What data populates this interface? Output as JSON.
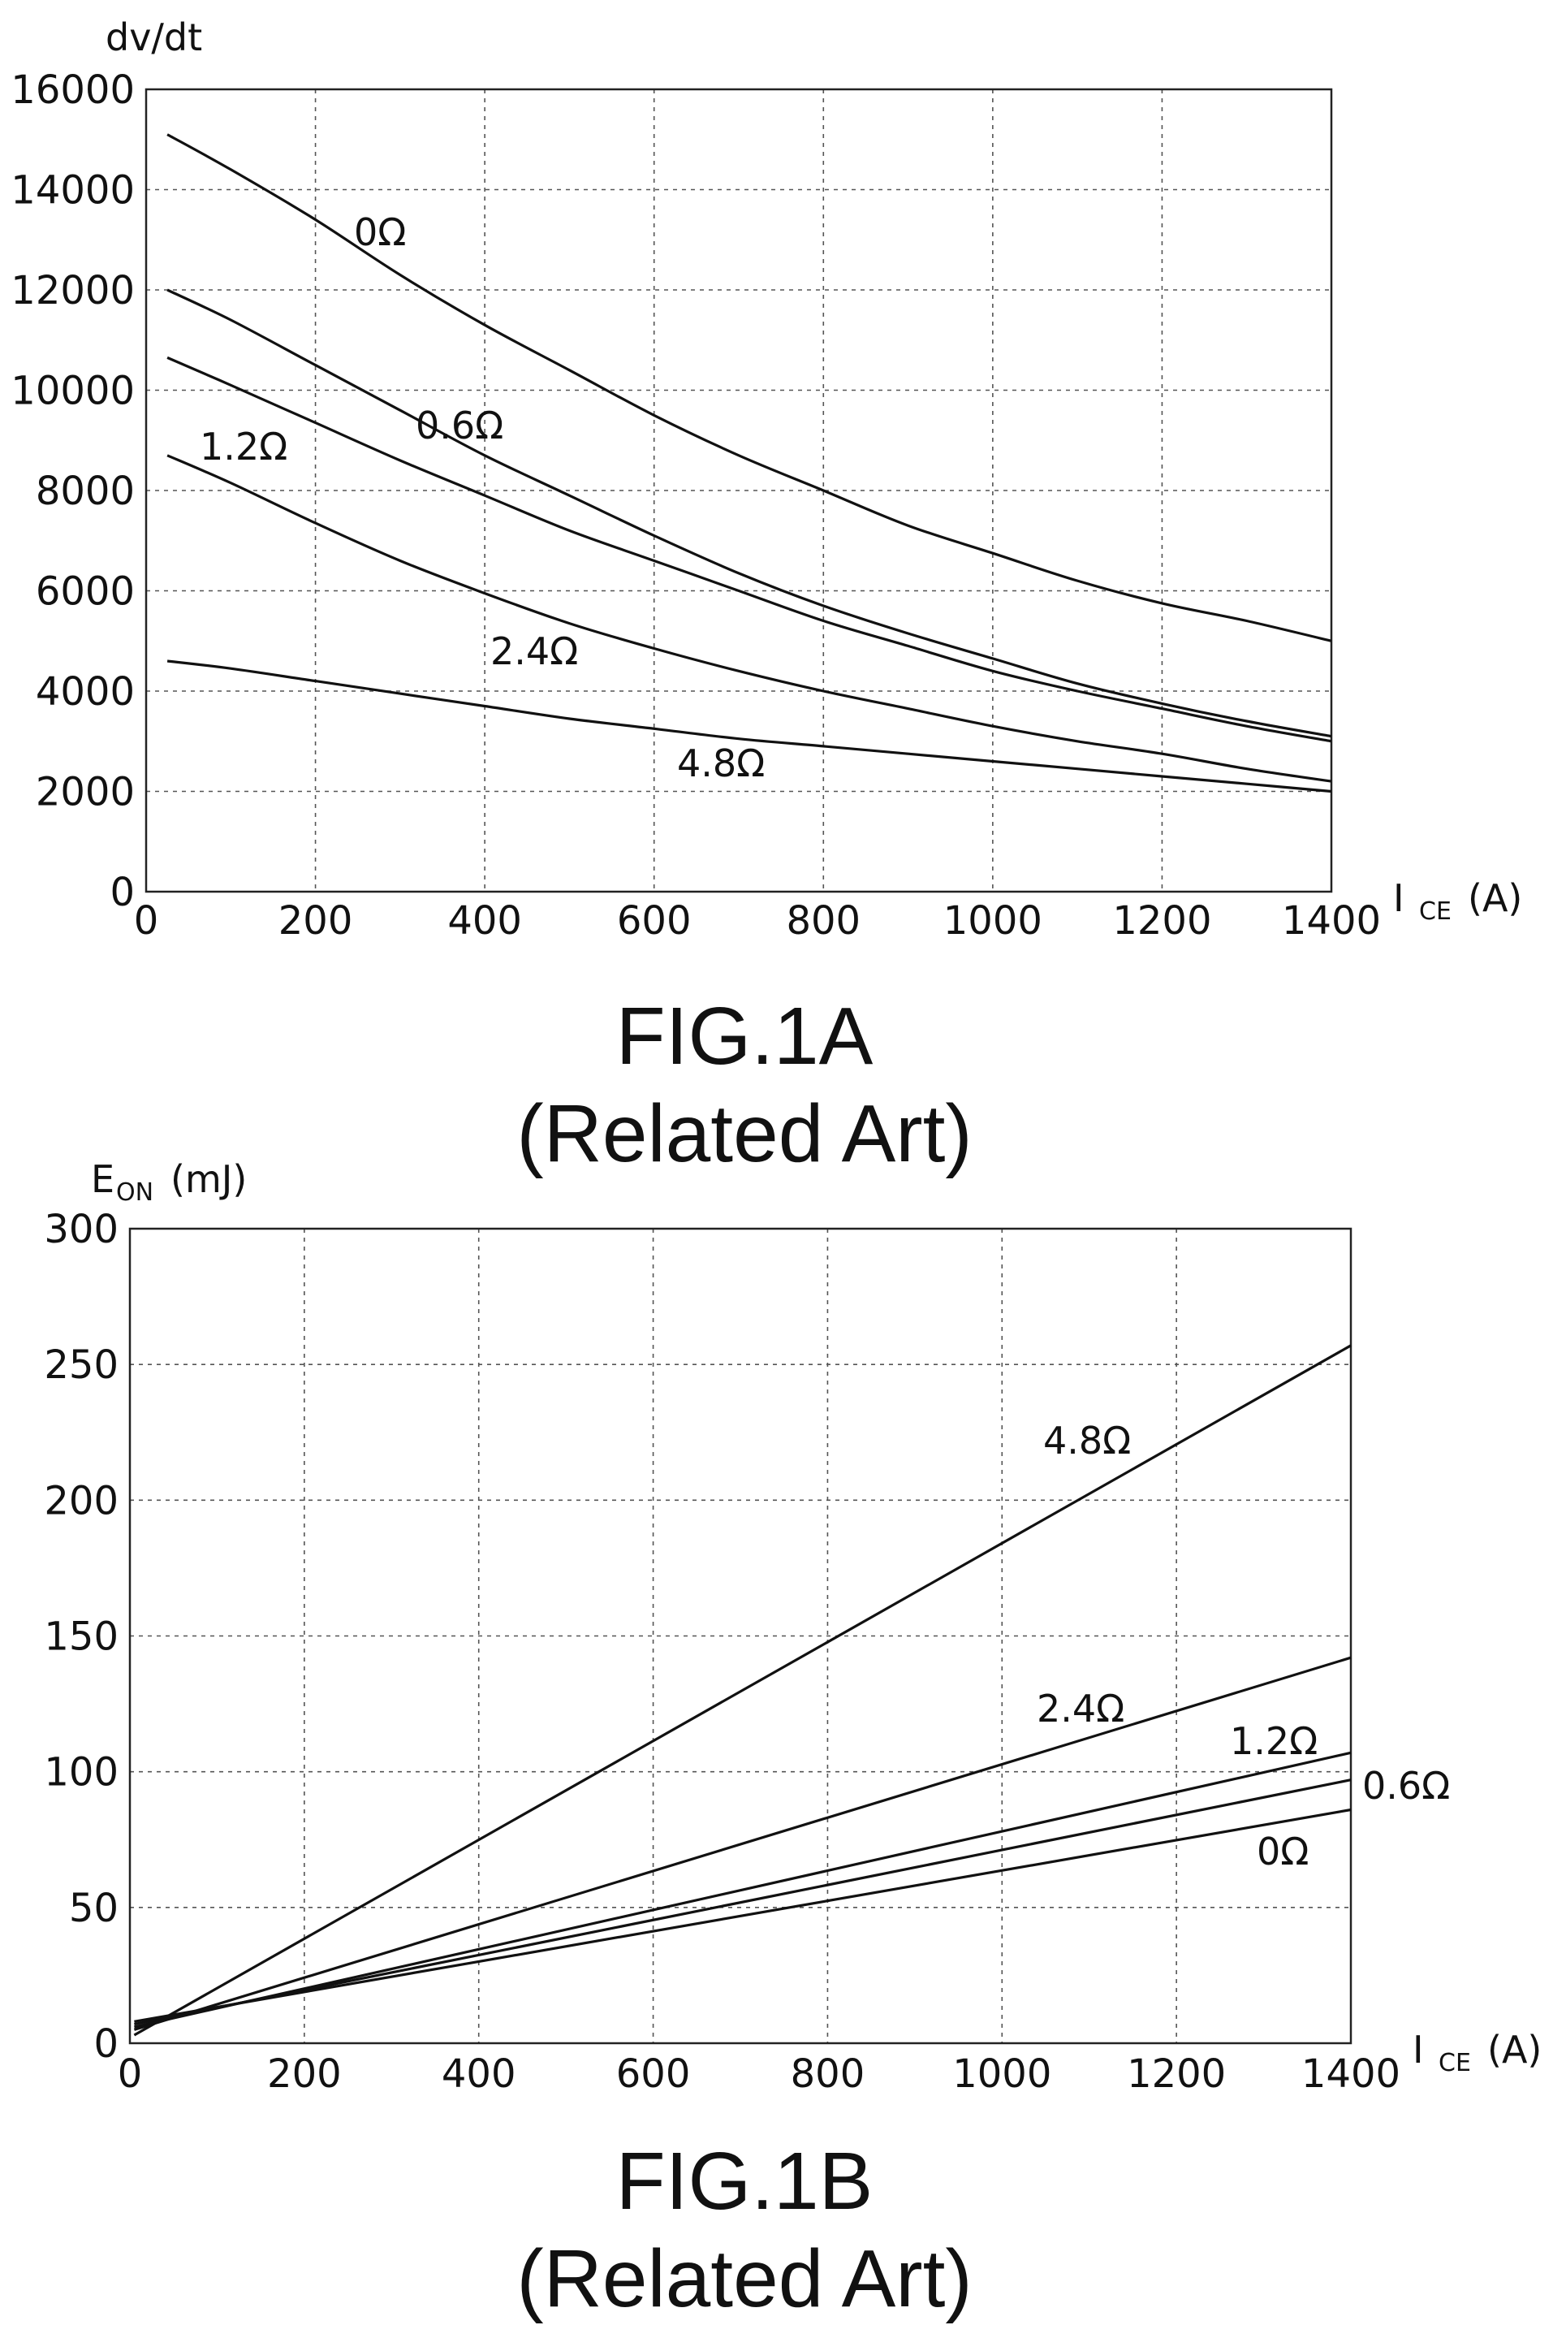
{
  "chart_data": [
    {
      "type": "line",
      "title": "",
      "ylabel": "dv/dt",
      "xlabel_main": "I",
      "xlabel_sub": "CE",
      "xlabel_unit": "(A)",
      "xlim": [
        0,
        1400
      ],
      "ylim": [
        0,
        16000
      ],
      "x_ticks": [
        0,
        200,
        400,
        600,
        800,
        1000,
        1200,
        1400
      ],
      "y_ticks": [
        0,
        2000,
        4000,
        6000,
        8000,
        10000,
        12000,
        14000,
        16000
      ],
      "grid": true,
      "x": [
        25,
        100,
        200,
        300,
        400,
        500,
        600,
        700,
        800,
        900,
        1000,
        1100,
        1200,
        1300,
        1400
      ],
      "series": [
        {
          "name": "0Ω",
          "values": [
            15100,
            14400,
            13400,
            12300,
            11300,
            10400,
            9500,
            8700,
            8000,
            7300,
            6750,
            6200,
            5750,
            5400,
            5000
          ]
        },
        {
          "name": "0.6Ω",
          "values": [
            12000,
            11400,
            10500,
            9600,
            8700,
            7900,
            7100,
            6350,
            5700,
            5150,
            4650,
            4150,
            3750,
            3400,
            3100
          ]
        },
        {
          "name": "1.2Ω",
          "values": [
            10650,
            10100,
            9350,
            8600,
            7900,
            7200,
            6600,
            6000,
            5400,
            4900,
            4400,
            4000,
            3650,
            3300,
            3000
          ]
        },
        {
          "name": "2.4Ω",
          "values": [
            8700,
            8150,
            7350,
            6600,
            5950,
            5350,
            4850,
            4400,
            4000,
            3650,
            3300,
            3000,
            2750,
            2450,
            2200
          ]
        },
        {
          "name": "4.8Ω",
          "values": [
            4600,
            4450,
            4200,
            3950,
            3700,
            3450,
            3250,
            3050,
            2900,
            2750,
            2600,
            2450,
            2300,
            2150,
            2000
          ]
        }
      ],
      "caption_line1": "FIG.1A",
      "caption_line2": "(Related Art)"
    },
    {
      "type": "line",
      "title": "",
      "ylabel_main": "E",
      "ylabel_sub": "ON",
      "ylabel_unit": "(mJ)",
      "xlabel_main": "I",
      "xlabel_sub": "CE",
      "xlabel_unit": "(A)",
      "xlim": [
        0,
        1400
      ],
      "ylim": [
        0,
        300
      ],
      "x_ticks": [
        0,
        200,
        400,
        600,
        800,
        1000,
        1200,
        1400
      ],
      "y_ticks": [
        0,
        50,
        100,
        150,
        200,
        250,
        300
      ],
      "grid": true,
      "x": [
        5,
        1400
      ],
      "series": [
        {
          "name": "4.8Ω",
          "values": [
            3,
            257
          ]
        },
        {
          "name": "2.4Ω",
          "values": [
            5,
            142
          ]
        },
        {
          "name": "1.2Ω",
          "values": [
            6,
            107
          ]
        },
        {
          "name": "0.6Ω",
          "values": [
            7,
            97
          ]
        },
        {
          "name": "0Ω",
          "values": [
            8,
            86
          ]
        }
      ],
      "caption_line1": "FIG.1B",
      "caption_line2": "(Related Art)"
    }
  ]
}
